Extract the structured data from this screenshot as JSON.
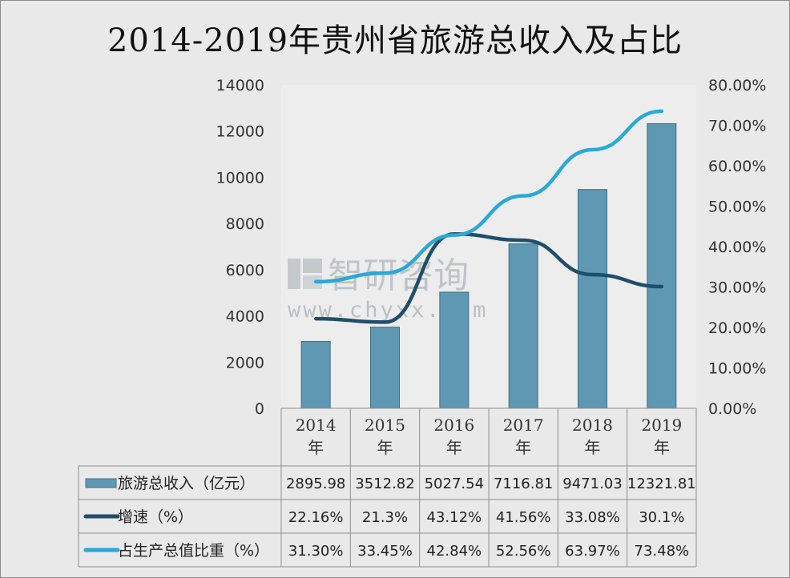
{
  "chart_data": {
    "type": "bar",
    "title": "2014-2019年贵州省旅游总收入及占比",
    "categories": [
      "2014年",
      "2015年",
      "2016年",
      "2017年",
      "2018年",
      "2019年"
    ],
    "y_left": {
      "ticks": [
        "14000",
        "12000",
        "10000",
        "8000",
        "6000",
        "4000",
        "2000",
        "0"
      ],
      "ylim": [
        0,
        14000
      ]
    },
    "y_right": {
      "ticks": [
        "80.00%",
        "70.00%",
        "60.00%",
        "50.00%",
        "40.00%",
        "30.00%",
        "20.00%",
        "10.00%",
        "0.00%"
      ],
      "ylim": [
        0,
        80
      ]
    },
    "series": [
      {
        "name": "旅游总收入（亿元）",
        "type": "bar",
        "axis": "left",
        "color": "#5e98b2",
        "values": [
          2895.98,
          3512.82,
          5027.54,
          7116.81,
          9471.03,
          12321.81
        ],
        "labels": [
          "2895.98",
          "3512.82",
          "5027.54",
          "7116.81",
          "9471.03",
          "12321.81"
        ]
      },
      {
        "name": "增速（%）",
        "type": "line",
        "axis": "right",
        "color": "#1f4e6b",
        "values": [
          22.16,
          21.3,
          43.12,
          41.56,
          33.08,
          30.1
        ],
        "labels": [
          "22.16%",
          "21.3%",
          "43.12%",
          "41.56%",
          "33.08%",
          "30.1%"
        ]
      },
      {
        "name": "占生产总值比重（%）",
        "type": "line",
        "axis": "right",
        "color": "#2aa8d8",
        "values": [
          31.3,
          33.45,
          42.84,
          52.56,
          63.97,
          73.48
        ],
        "labels": [
          "31.30%",
          "33.45%",
          "42.84%",
          "52.56%",
          "63.97%",
          "73.48%"
        ]
      }
    ],
    "legend_placement": "data-table-bottom",
    "grid": false
  },
  "watermark": {
    "brand": "智研咨询",
    "url": "www.chyxx.com"
  }
}
